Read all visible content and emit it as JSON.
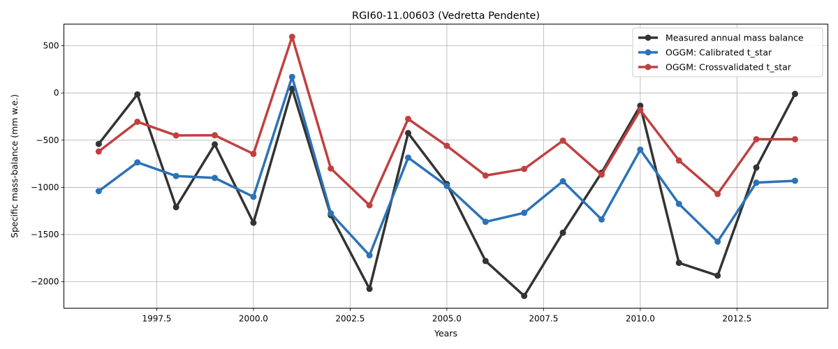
{
  "chart_data": {
    "type": "line",
    "title": "RGI60-11.00603 (Vedretta Pendente)",
    "xlabel": "Years",
    "ylabel": "Specific mass-balance (mm w.e.)",
    "xlim": [
      1995.1,
      2014.85
    ],
    "ylim": [
      -2280,
      730
    ],
    "xticks": [
      1997.5,
      2000.0,
      2002.5,
      2005.0,
      2007.5,
      2010.0,
      2012.5
    ],
    "xtick_labels": [
      "1997.5",
      "2000.0",
      "2002.5",
      "2005.0",
      "2007.5",
      "2010.0",
      "2012.5"
    ],
    "yticks": [
      500,
      0,
      -500,
      -1000,
      -1500,
      -2000
    ],
    "ytick_labels": [
      "500",
      "0",
      "−500",
      "−1000",
      "−1500",
      "−2000"
    ],
    "grid": true,
    "legend_position": "top-right",
    "x": [
      1996,
      1997,
      1998,
      1999,
      2000,
      2001,
      2002,
      2003,
      2004,
      2005,
      2006,
      2007,
      2008,
      2009,
      2010,
      2011,
      2012,
      2013,
      2014
    ],
    "series": [
      {
        "name": "Measured annual mass balance",
        "color": "#333333",
        "values": [
          -540,
          -15,
          -1210,
          -545,
          -1375,
          45,
          -1295,
          -2075,
          -425,
          -965,
          -1780,
          -2150,
          -1480,
          -845,
          -135,
          -1800,
          -1935,
          -790,
          -10
        ]
      },
      {
        "name": "OGGM: Calibrated t_star",
        "color": "#2b72b8",
        "values": [
          -1040,
          -735,
          -880,
          -900,
          -1100,
          170,
          -1275,
          -1720,
          -685,
          -985,
          -1365,
          -1270,
          -935,
          -1340,
          -600,
          -1175,
          -1575,
          -950,
          -930
        ]
      },
      {
        "name": "OGGM: Crossvalidated t_star",
        "color": "#c04040",
        "values": [
          -620,
          -305,
          -450,
          -448,
          -645,
          595,
          -800,
          -1190,
          -275,
          -560,
          -875,
          -805,
          -505,
          -865,
          -180,
          -715,
          -1070,
          -490,
          -490
        ]
      }
    ]
  }
}
